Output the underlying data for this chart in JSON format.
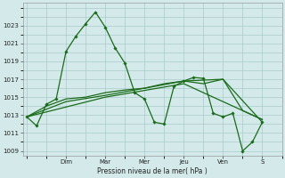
{
  "background_color": "#d4eaea",
  "grid_color": "#a0c4c4",
  "line_color": "#1a6b1a",
  "marker_color": "#1a6b1a",
  "xlabel": "Pression niveau de la mer( hPa )",
  "ylim": [
    1008.5,
    1025.5
  ],
  "yticks": [
    1009,
    1011,
    1013,
    1015,
    1017,
    1019,
    1021,
    1023
  ],
  "x_day_labels": [
    "Dim",
    "Mar",
    "Mer",
    "Jeu",
    "Ven",
    "S"
  ],
  "x_day_positions": [
    2,
    4,
    6,
    8,
    10,
    12
  ],
  "xlim": [
    -0.2,
    13.0
  ],
  "series1_x": [
    0,
    0.5,
    1,
    1.5,
    2,
    2.5,
    3,
    3.5,
    4,
    4.5,
    5,
    5.5,
    6,
    6.5,
    7,
    7.5,
    8,
    8.5,
    9,
    9.5,
    10,
    10.5,
    11,
    11.5,
    12
  ],
  "series1_y": [
    1012.8,
    1011.8,
    1014.2,
    1014.8,
    1020.1,
    1021.8,
    1023.2,
    1024.5,
    1022.8,
    1020.5,
    1018.8,
    1015.5,
    1014.8,
    1012.2,
    1012.0,
    1016.2,
    1016.8,
    1017.2,
    1017.1,
    1013.2,
    1012.8,
    1013.2,
    1009.0,
    1010.0,
    1012.2
  ],
  "series2_x": [
    0,
    1,
    2,
    3,
    4,
    5,
    6,
    7,
    8,
    9,
    10,
    11,
    12
  ],
  "series2_y": [
    1012.8,
    1014.0,
    1014.8,
    1015.0,
    1015.5,
    1015.8,
    1016.0,
    1016.5,
    1016.8,
    1016.5,
    1017.0,
    1013.5,
    1012.5
  ],
  "series3_x": [
    0,
    2,
    4,
    6,
    8,
    10,
    12
  ],
  "series3_y": [
    1012.8,
    1014.5,
    1015.2,
    1016.0,
    1016.8,
    1017.0,
    1012.2
  ],
  "series4_x": [
    0,
    4,
    8,
    12
  ],
  "series4_y": [
    1012.8,
    1015.0,
    1016.5,
    1012.5
  ]
}
